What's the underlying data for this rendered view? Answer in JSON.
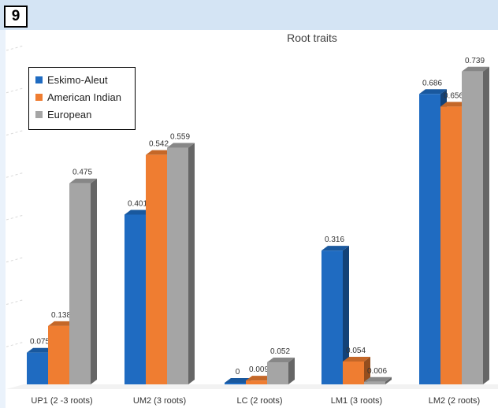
{
  "figure_number": "9",
  "chart_data": {
    "type": "bar",
    "title": "Root traits",
    "categories": [
      "UP1 (2 -3 roots)",
      "UM2 (3 roots)",
      "LC  (2 roots)",
      "LM1 (3 roots)",
      "LM2 (2 roots)"
    ],
    "series": [
      {
        "name": "Eskimo-Aleut",
        "color": "#1f6bc1",
        "values": [
          0.075,
          0.401,
          0,
          0.316,
          0.686
        ],
        "labels": [
          "0.075",
          "0.401",
          "0",
          "0.316",
          "0.686"
        ]
      },
      {
        "name": "American Indian",
        "color": "#ef7d31",
        "values": [
          0.138,
          0.542,
          0.009,
          0.054,
          0.656
        ],
        "labels": [
          "0.138",
          "0.542",
          "0.009",
          "0.054",
          "0.656"
        ]
      },
      {
        "name": "European",
        "color": "#a5a5a5",
        "values": [
          0.475,
          0.559,
          0.052,
          0.006,
          0.739
        ],
        "labels": [
          "0.475",
          "0.559",
          "0.052",
          "0.006",
          "0.739"
        ]
      }
    ],
    "ylim": [
      0,
      0.8
    ],
    "legend_position": "top-left",
    "style": "3d-clustered-column",
    "grid": true
  }
}
